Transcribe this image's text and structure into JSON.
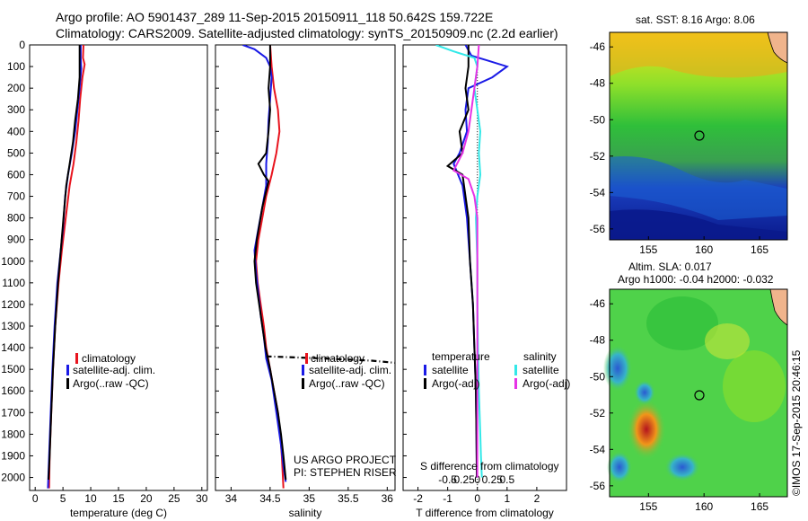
{
  "header": {
    "line1": "Argo profile: AO 5901437_289 11-Sep-2015 20150911_118 50.642S 159.722E",
    "line2": "Climatology: CARS2009. Satellite-adjusted climatology: synTS_20150909.nc (2.2d earlier)"
  },
  "credits": {
    "project": "US ARGO PROJECT",
    "pi": "PI: STEPHEN RISER",
    "watermark": "©IMOS 17-Sep-2015 20:46:15"
  },
  "colors": {
    "climatology": "#e8141e",
    "satellite": "#1a1ae6",
    "argo": "#000000",
    "sat_salinity": "#33e8e8",
    "argo_adj_salinity": "#e633e6"
  },
  "depth_axis": {
    "ticks": [
      0,
      100,
      200,
      300,
      400,
      500,
      600,
      700,
      800,
      900,
      1000,
      1100,
      1200,
      1300,
      1400,
      1500,
      1600,
      1700,
      1800,
      1900,
      2000
    ],
    "range": [
      0,
      2060
    ]
  },
  "chart_data": [
    {
      "type": "line",
      "xlabel": "temperature (deg C)",
      "xlim": [
        -1,
        31
      ],
      "xticks": [
        0,
        5,
        10,
        15,
        20,
        25,
        30
      ],
      "legend": [
        "climatology",
        "satellite-adj. clim.",
        "Argo(..raw -QC)"
      ],
      "series": [
        {
          "name": "climatology",
          "color": "red",
          "points": [
            [
              8.7,
              0
            ],
            [
              8.6,
              60
            ],
            [
              8.9,
              90
            ],
            [
              8.5,
              150
            ],
            [
              8.1,
              250
            ],
            [
              7.8,
              350
            ],
            [
              7.4,
              450
            ],
            [
              6.9,
              550
            ],
            [
              6.2,
              650
            ],
            [
              5.5,
              800
            ],
            [
              4.8,
              950
            ],
            [
              4.2,
              1100
            ],
            [
              3.6,
              1300
            ],
            [
              3.2,
              1500
            ],
            [
              2.9,
              1700
            ],
            [
              2.6,
              1900
            ],
            [
              2.5,
              2050
            ]
          ]
        },
        {
          "name": "satellite-adj. clim.",
          "color": "blue",
          "points": [
            [
              8.2,
              0
            ],
            [
              8.2,
              60
            ],
            [
              8.3,
              110
            ],
            [
              8.0,
              200
            ],
            [
              7.6,
              300
            ],
            [
              7.2,
              400
            ],
            [
              6.6,
              500
            ],
            [
              5.9,
              600
            ],
            [
              5.4,
              700
            ],
            [
              5.0,
              850
            ],
            [
              4.4,
              1000
            ],
            [
              4.0,
              1100
            ],
            [
              3.5,
              1300
            ],
            [
              3.1,
              1500
            ],
            [
              2.8,
              1700
            ],
            [
              2.5,
              1900
            ],
            [
              2.3,
              2050
            ]
          ]
        },
        {
          "name": "Argo(..raw -QC)",
          "color": "black",
          "points": [
            [
              8.0,
              0
            ],
            [
              8.0,
              50
            ],
            [
              8.0,
              150
            ],
            [
              7.7,
              250
            ],
            [
              7.2,
              350
            ],
            [
              6.8,
              450
            ],
            [
              6.2,
              550
            ],
            [
              5.6,
              650
            ],
            [
              5.1,
              800
            ],
            [
              4.6,
              950
            ],
            [
              4.1,
              1100
            ],
            [
              3.6,
              1300
            ],
            [
              3.2,
              1500
            ],
            [
              2.9,
              1700
            ],
            [
              2.6,
              1900
            ],
            [
              2.4,
              2010
            ]
          ]
        }
      ]
    },
    {
      "type": "line",
      "xlabel": "salinity",
      "xlim": [
        33.8,
        36.1
      ],
      "xticks": [
        34,
        34.5,
        35,
        35.5,
        36
      ],
      "legend": [
        "climatology",
        "satellite-adj. clim.",
        "Argo(..raw -QC)"
      ],
      "series": [
        {
          "name": "climatology",
          "color": "red",
          "points": [
            [
              34.5,
              0
            ],
            [
              34.52,
              100
            ],
            [
              34.55,
              200
            ],
            [
              34.6,
              300
            ],
            [
              34.62,
              400
            ],
            [
              34.58,
              500
            ],
            [
              34.52,
              600
            ],
            [
              34.45,
              700
            ],
            [
              34.4,
              800
            ],
            [
              34.35,
              900
            ],
            [
              34.32,
              1000
            ],
            [
              34.34,
              1100
            ],
            [
              34.38,
              1200
            ],
            [
              34.42,
              1300
            ],
            [
              34.45,
              1400
            ],
            [
              34.5,
              1500
            ],
            [
              34.55,
              1600
            ],
            [
              34.6,
              1700
            ],
            [
              34.63,
              1800
            ],
            [
              34.65,
              1900
            ],
            [
              34.67,
              2050
            ]
          ]
        },
        {
          "name": "satellite-adj. clim.",
          "color": "blue",
          "points": [
            [
              34.15,
              0
            ],
            [
              34.3,
              20
            ],
            [
              34.45,
              60
            ],
            [
              34.5,
              100
            ],
            [
              34.52,
              150
            ],
            [
              34.5,
              250
            ],
            [
              34.48,
              350
            ],
            [
              34.47,
              450
            ],
            [
              34.45,
              550
            ],
            [
              34.45,
              650
            ],
            [
              34.4,
              750
            ],
            [
              34.35,
              850
            ],
            [
              34.3,
              950
            ],
            [
              34.32,
              1050
            ],
            [
              34.35,
              1150
            ],
            [
              34.38,
              1250
            ],
            [
              34.42,
              1350
            ],
            [
              34.45,
              1450
            ],
            [
              34.52,
              1550
            ],
            [
              34.56,
              1650
            ],
            [
              34.6,
              1750
            ],
            [
              34.64,
              1850
            ],
            [
              34.67,
              1950
            ],
            [
              34.7,
              2020
            ]
          ]
        },
        {
          "name": "Argo(..raw -QC)",
          "color": "black",
          "points": [
            [
              34.5,
              0
            ],
            [
              34.5,
              100
            ],
            [
              34.48,
              200
            ],
            [
              34.5,
              300
            ],
            [
              34.48,
              400
            ],
            [
              34.45,
              500
            ],
            [
              34.35,
              550
            ],
            [
              34.42,
              600
            ],
            [
              34.48,
              630
            ],
            [
              34.4,
              750
            ],
            [
              34.33,
              900
            ],
            [
              34.3,
              1000
            ],
            [
              34.32,
              1100
            ],
            [
              34.36,
              1200
            ],
            [
              34.4,
              1300
            ],
            [
              34.44,
              1400
            ],
            [
              34.5,
              1500
            ],
            [
              34.55,
              1600
            ],
            [
              34.6,
              1700
            ],
            [
              34.64,
              1800
            ],
            [
              34.67,
              1900
            ],
            [
              34.7,
              2010
            ]
          ]
        },
        {
          "name": "Argo(..raw -QC) raw",
          "color": "black",
          "dashed": true,
          "points": [
            [
              34.45,
              1440
            ],
            [
              35.2,
              1450
            ],
            [
              35.8,
              1460
            ],
            [
              36.1,
              1470
            ]
          ]
        }
      ]
    },
    {
      "type": "line",
      "xlabel": "T difference from climatology",
      "xlim": [
        -2.5,
        3
      ],
      "xticks": [
        -2,
        -1,
        0,
        1,
        2
      ],
      "top_xlabel": "S difference from climatology",
      "top_ticks": [
        "-0.5",
        "-0.25",
        "0",
        "0.25",
        "0.5"
      ],
      "legend": [
        "temperature",
        "satellite",
        "Argo(-adj)",
        "salinity",
        "satellite",
        "Argo(-adj)"
      ],
      "series": [
        {
          "name": "temperature satellite",
          "color": "blue",
          "points": [
            [
              -0.4,
              0
            ],
            [
              -0.2,
              50
            ],
            [
              0.3,
              70
            ],
            [
              1.0,
              100
            ],
            [
              0.5,
              150
            ],
            [
              -0.3,
              200
            ],
            [
              -0.4,
              300
            ],
            [
              -0.35,
              400
            ],
            [
              -0.6,
              500
            ],
            [
              -0.8,
              550
            ],
            [
              -0.5,
              650
            ],
            [
              -0.35,
              800
            ],
            [
              -0.25,
              1000
            ],
            [
              -0.15,
              1200
            ],
            [
              -0.1,
              1400
            ],
            [
              -0.05,
              1600
            ],
            [
              -0.03,
              1800
            ],
            [
              -0.02,
              2000
            ]
          ]
        },
        {
          "name": "temperature Argo(-adj)",
          "color": "black",
          "points": [
            [
              -0.3,
              0
            ],
            [
              -0.3,
              100
            ],
            [
              -0.4,
              200
            ],
            [
              -0.3,
              300
            ],
            [
              -0.6,
              400
            ],
            [
              -0.5,
              500
            ],
            [
              -1.0,
              560
            ],
            [
              -0.5,
              600
            ],
            [
              -0.4,
              700
            ],
            [
              -0.3,
              800
            ],
            [
              -0.25,
              1000
            ],
            [
              -0.15,
              1200
            ],
            [
              -0.1,
              1400
            ],
            [
              -0.05,
              1600
            ],
            [
              -0.03,
              1800
            ],
            [
              -0.02,
              2000
            ]
          ]
        },
        {
          "name": "salinity satellite",
          "color": "cyan",
          "points": [
            [
              -1.4,
              0
            ],
            [
              -0.8,
              30
            ],
            [
              -0.1,
              60
            ],
            [
              0.0,
              100
            ],
            [
              -0.1,
              200
            ],
            [
              0.0,
              300
            ],
            [
              0.1,
              400
            ],
            [
              0.05,
              500
            ],
            [
              0.1,
              600
            ],
            [
              0.0,
              700
            ],
            [
              -0.05,
              800
            ],
            [
              0.0,
              1000
            ],
            [
              0.0,
              1200
            ],
            [
              0.02,
              1400
            ],
            [
              0.05,
              1600
            ],
            [
              0.1,
              1800
            ],
            [
              0.12,
              1900
            ],
            [
              0.15,
              2000
            ]
          ]
        },
        {
          "name": "salinity Argo(-adj)",
          "color": "magenta",
          "points": [
            [
              0.05,
              0
            ],
            [
              0.0,
              100
            ],
            [
              -0.1,
              200
            ],
            [
              -0.2,
              300
            ],
            [
              -0.3,
              400
            ],
            [
              -0.5,
              500
            ],
            [
              -0.8,
              580
            ],
            [
              -0.3,
              620
            ],
            [
              -0.1,
              700
            ],
            [
              0.0,
              800
            ],
            [
              0.0,
              1000
            ],
            [
              0.0,
              1200
            ],
            [
              0.0,
              1400
            ],
            [
              0.0,
              1600
            ],
            [
              0.0,
              1800
            ],
            [
              0.0,
              2000
            ]
          ]
        }
      ]
    }
  ],
  "maps": [
    {
      "title": "sat. SST: 8.16  Argo: 8.06",
      "xticks": [
        155,
        160,
        165
      ],
      "yticks": [
        -46,
        -48,
        -50,
        -52,
        -54,
        -56
      ]
    },
    {
      "title1": "Altim. SLA: 0.017",
      "title2": "Argo h1000: -0.04  h2000: -0.032",
      "xticks": [
        155,
        160,
        165
      ],
      "yticks": [
        -46,
        -48,
        -50,
        -52,
        -54,
        -56
      ]
    }
  ]
}
